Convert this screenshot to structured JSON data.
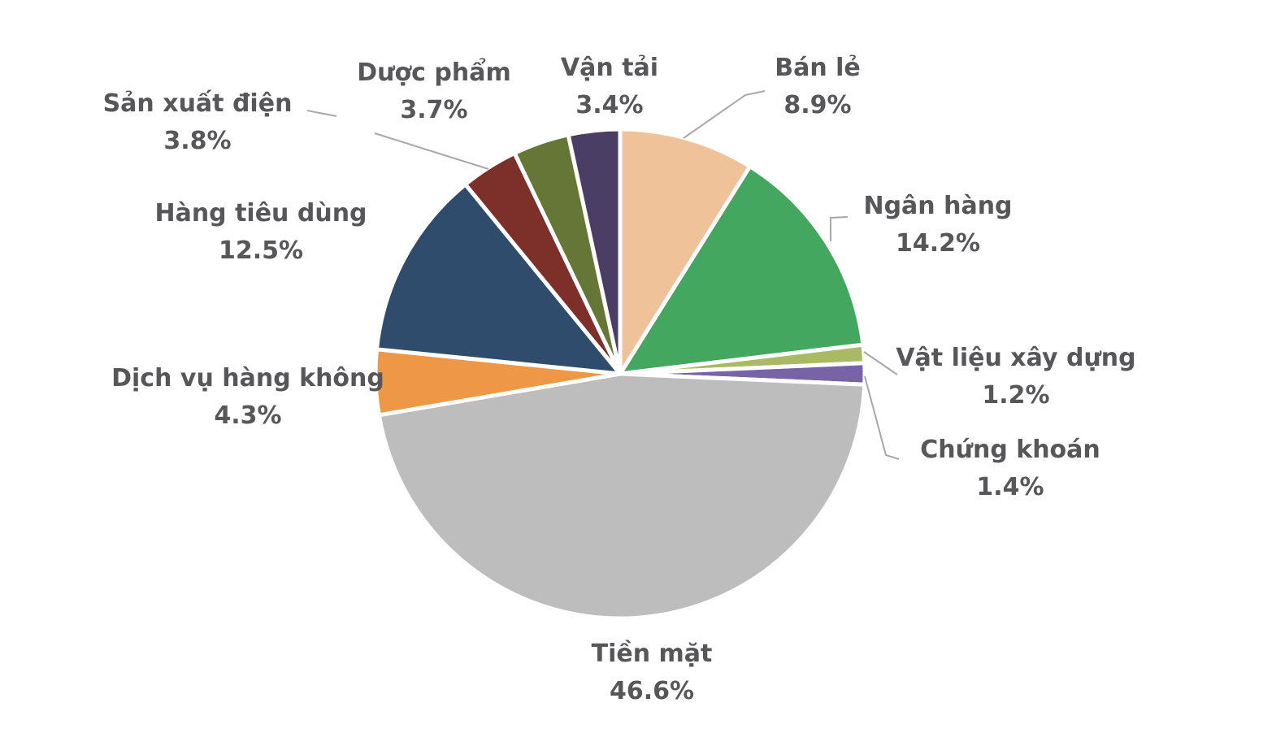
{
  "figure": {
    "background": "#ffffff",
    "label_color": "#57575a",
    "leader_line_color": "#a8a8a8"
  },
  "chart_data": {
    "type": "pie",
    "start_angle_deg": 0,
    "direction": "clockwise",
    "title": "",
    "slices": [
      {
        "label": "Bán lẻ",
        "value": 8.9,
        "pct_text": "8.9%",
        "color": "#efc299"
      },
      {
        "label": "Ngân hàng",
        "value": 14.2,
        "pct_text": "14.2%",
        "color": "#43a75f"
      },
      {
        "label": "Vật liệu xây dựng",
        "value": 1.2,
        "pct_text": "1.2%",
        "color": "#a9b964"
      },
      {
        "label": "Chứng khoán",
        "value": 1.4,
        "pct_text": "1.4%",
        "color": "#7763a6"
      },
      {
        "label": "Tiền mặt",
        "value": 46.6,
        "pct_text": "46.6%",
        "color": "#bdbdbd"
      },
      {
        "label": "Dịch vụ hàng không",
        "value": 4.3,
        "pct_text": "4.3%",
        "color": "#ee9747"
      },
      {
        "label": "Hàng tiêu dùng",
        "value": 12.5,
        "pct_text": "12.5%",
        "color": "#2f4c6d"
      },
      {
        "label": "Sản xuất điện",
        "value": 3.8,
        "pct_text": "3.8%",
        "color": "#7d2f2a"
      },
      {
        "label": "Dược phẩm",
        "value": 3.7,
        "pct_text": "3.7%",
        "color": "#657637"
      },
      {
        "label": "Vận tải",
        "value": 3.4,
        "pct_text": "3.4%",
        "color": "#4b3e64"
      }
    ]
  }
}
